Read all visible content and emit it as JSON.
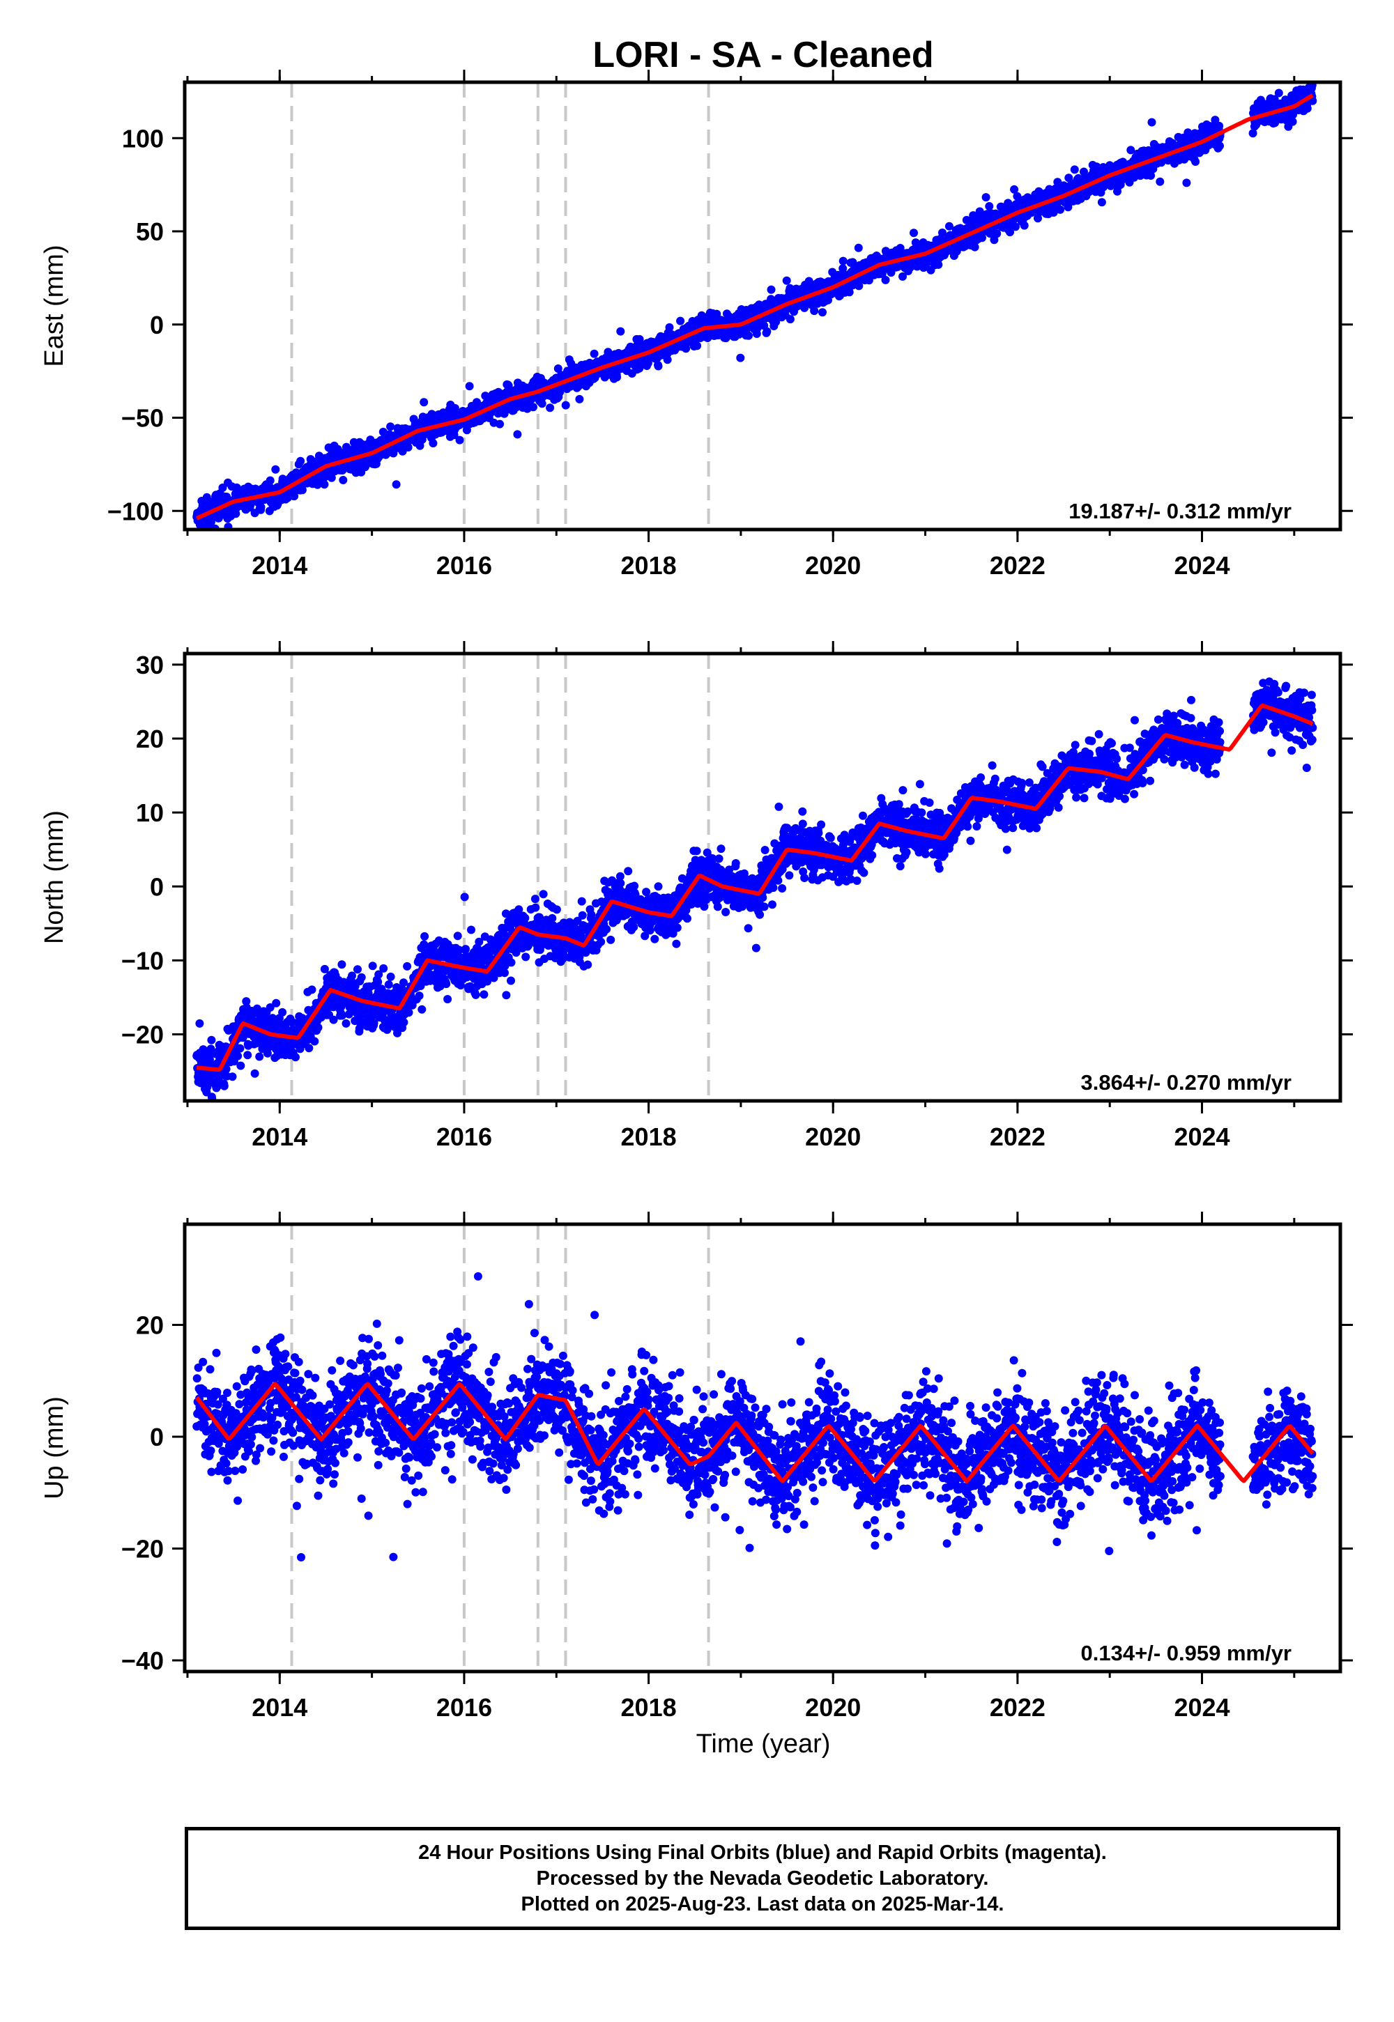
{
  "title": "LORI  - SA - Cleaned",
  "xlabel": "Time (year)",
  "footer": {
    "line1": "24 Hour Positions Using Final Orbits (blue) and Rapid Orbits (magenta).",
    "line2": "Processed by the Nevada Geodetic Laboratory.",
    "line3": "Plotted on 2025-Aug-23. Last data on 2025-Mar-14."
  },
  "colors": {
    "points": "#0000ff",
    "model": "#ff0000",
    "events": "#c8c8c8",
    "frame": "#000000"
  },
  "chart_data": [
    {
      "type": "scatter",
      "panel": "east",
      "ylabel": "East (mm)",
      "rate_label": "19.187+/- 0.312 mm/yr",
      "xlim": [
        2012.97,
        2025.5
      ],
      "ylim": [
        -110,
        130
      ],
      "xticks": [
        2014,
        2016,
        2018,
        2020,
        2022,
        2024
      ],
      "yticks": [
        -100,
        -50,
        0,
        50,
        100
      ],
      "event_lines": [
        2014.13,
        2016.0,
        2016.8,
        2017.1,
        2018.65
      ],
      "data_range": [
        2013.1,
        2025.2
      ],
      "rate_mm_per_yr": 19.187,
      "model_points": [
        [
          2013.1,
          -104
        ],
        [
          2013.5,
          -95
        ],
        [
          2014.0,
          -90
        ],
        [
          2014.5,
          -76
        ],
        [
          2015.0,
          -69
        ],
        [
          2015.5,
          -57
        ],
        [
          2016.0,
          -51
        ],
        [
          2016.5,
          -40
        ],
        [
          2016.8,
          -36
        ],
        [
          2017.5,
          -23
        ],
        [
          2018.0,
          -15
        ],
        [
          2018.6,
          -2
        ],
        [
          2019.0,
          0
        ],
        [
          2019.5,
          11
        ],
        [
          2020.0,
          20
        ],
        [
          2020.5,
          32
        ],
        [
          2021.0,
          38
        ],
        [
          2021.5,
          49
        ],
        [
          2022.0,
          60
        ],
        [
          2022.5,
          69
        ],
        [
          2023.0,
          80
        ],
        [
          2023.5,
          89
        ],
        [
          2024.0,
          98
        ],
        [
          2024.5,
          110
        ],
        [
          2025.0,
          117
        ],
        [
          2025.2,
          123
        ]
      ],
      "scatter_sd": 3.5
    },
    {
      "type": "scatter",
      "panel": "north",
      "ylabel": "North (mm)",
      "rate_label": "3.864+/- 0.270 mm/yr",
      "xlim": [
        2012.97,
        2025.5
      ],
      "ylim": [
        -29,
        31.5
      ],
      "xticks": [
        2014,
        2016,
        2018,
        2020,
        2022,
        2024
      ],
      "yticks": [
        -20,
        -10,
        0,
        10,
        20,
        30
      ],
      "event_lines": [
        2014.13,
        2016.0,
        2016.8,
        2017.1,
        2018.65
      ],
      "data_range": [
        2013.1,
        2025.2
      ],
      "rate_mm_per_yr": 3.864,
      "model_points": [
        [
          2013.1,
          -24.5
        ],
        [
          2013.35,
          -24.8
        ],
        [
          2013.6,
          -18.5
        ],
        [
          2013.9,
          -20
        ],
        [
          2014.2,
          -20.5
        ],
        [
          2014.55,
          -14
        ],
        [
          2014.9,
          -15.5
        ],
        [
          2015.3,
          -16.5
        ],
        [
          2015.6,
          -10
        ],
        [
          2016.0,
          -11
        ],
        [
          2016.25,
          -11.5
        ],
        [
          2016.6,
          -5.5
        ],
        [
          2016.8,
          -6.5
        ],
        [
          2017.1,
          -7
        ],
        [
          2017.3,
          -8
        ],
        [
          2017.6,
          -2
        ],
        [
          2018.0,
          -3.5
        ],
        [
          2018.25,
          -4
        ],
        [
          2018.55,
          1.5
        ],
        [
          2018.8,
          0
        ],
        [
          2019.2,
          -1
        ],
        [
          2019.5,
          5
        ],
        [
          2019.8,
          4.5
        ],
        [
          2020.2,
          3.5
        ],
        [
          2020.5,
          8.5
        ],
        [
          2020.8,
          7.5
        ],
        [
          2021.2,
          6.5
        ],
        [
          2021.5,
          12
        ],
        [
          2021.8,
          11.5
        ],
        [
          2022.2,
          10.5
        ],
        [
          2022.55,
          16
        ],
        [
          2022.9,
          15.5
        ],
        [
          2023.2,
          14.5
        ],
        [
          2023.6,
          20.5
        ],
        [
          2023.9,
          19.5
        ],
        [
          2024.3,
          18.5
        ],
        [
          2024.65,
          24.5
        ],
        [
          2025.0,
          23
        ],
        [
          2025.2,
          22
        ]
      ],
      "scatter_sd": 1.6
    },
    {
      "type": "scatter",
      "panel": "up",
      "ylabel": "Up (mm)",
      "rate_label": "0.134+/- 0.959 mm/yr",
      "xlim": [
        2012.97,
        2025.5
      ],
      "ylim": [
        -42,
        38
      ],
      "xticks": [
        2014,
        2016,
        2018,
        2020,
        2022,
        2024
      ],
      "yticks": [
        -40,
        -20,
        0,
        20
      ],
      "event_lines": [
        2014.13,
        2016.0,
        2016.8,
        2017.1,
        2018.65
      ],
      "data_range": [
        2013.1,
        2025.2
      ],
      "rate_mm_per_yr": 0.134,
      "model_points": [
        [
          2013.1,
          7
        ],
        [
          2013.45,
          -0.5
        ],
        [
          2013.95,
          9.5
        ],
        [
          2014.45,
          -0.5
        ],
        [
          2014.95,
          9.5
        ],
        [
          2015.45,
          -0.5
        ],
        [
          2015.95,
          9.5
        ],
        [
          2016.45,
          -0.5
        ],
        [
          2016.8,
          7.5
        ],
        [
          2017.1,
          6.5
        ],
        [
          2017.45,
          -5
        ],
        [
          2017.95,
          5
        ],
        [
          2018.45,
          -5
        ],
        [
          2018.65,
          -3.5
        ],
        [
          2018.95,
          2.5
        ],
        [
          2019.45,
          -8
        ],
        [
          2019.95,
          2
        ],
        [
          2020.45,
          -8
        ],
        [
          2020.95,
          2
        ],
        [
          2021.45,
          -8
        ],
        [
          2021.95,
          2
        ],
        [
          2022.45,
          -8
        ],
        [
          2022.95,
          2
        ],
        [
          2023.45,
          -8
        ],
        [
          2023.95,
          2
        ],
        [
          2024.45,
          -8
        ],
        [
          2024.95,
          2
        ],
        [
          2025.2,
          -3
        ]
      ],
      "scatter_sd": 4.5
    }
  ]
}
